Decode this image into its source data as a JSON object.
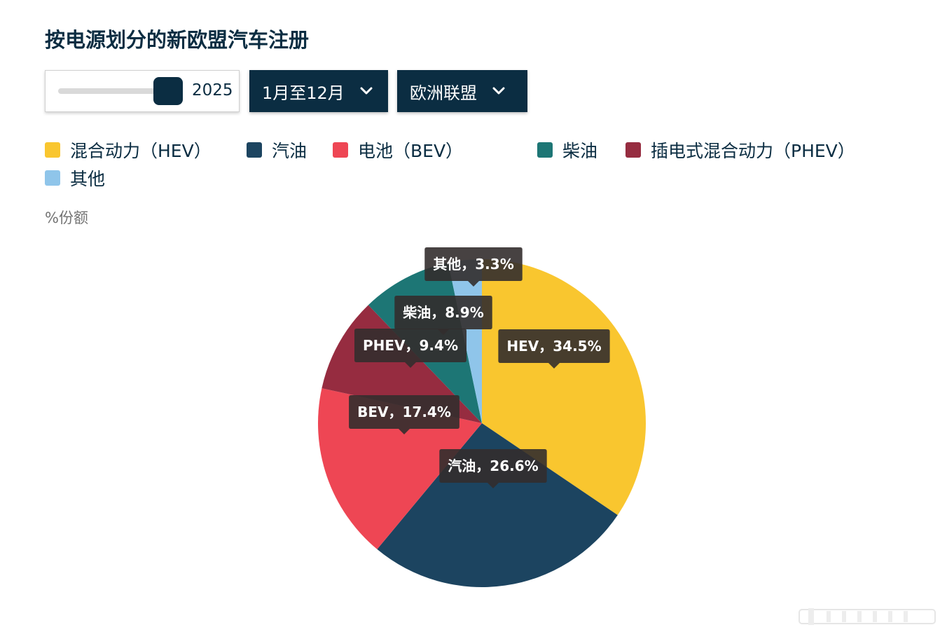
{
  "title": "按电源划分的新欧盟汽车注册",
  "controls": {
    "year_value": "2025",
    "period_label": "1月至12月",
    "region_label": "欧洲联盟"
  },
  "legend": [
    {
      "label": "混合动力（HEV）",
      "color": "#f9c62f"
    },
    {
      "label": "汽油",
      "color": "#1c4460"
    },
    {
      "label": "电池（BEV）",
      "color": "#ee4654"
    },
    {
      "label": "柴油",
      "color": "#1d7675"
    },
    {
      "label": "插电式混合动力（PHEV）",
      "color": "#962c40"
    },
    {
      "label": "其他",
      "color": "#8fc5ea"
    }
  ],
  "unit_label": "%份额",
  "chart_data": {
    "type": "pie",
    "title": "按电源划分的新欧盟汽车注册",
    "unit": "%份额",
    "slices": [
      {
        "name": "HEV",
        "value": 34.5,
        "label": "HEV，34.5%",
        "color": "#f9c62f"
      },
      {
        "name": "汽油",
        "value": 26.6,
        "label": "汽油，26.6%",
        "color": "#1c4460"
      },
      {
        "name": "BEV",
        "value": 17.4,
        "label": "BEV，17.4%",
        "color": "#ee4654"
      },
      {
        "name": "PHEV",
        "value": 9.4,
        "label": "PHEV，9.4%",
        "color": "#962c40"
      },
      {
        "name": "柴油",
        "value": 8.9,
        "label": "柴油，8.9%",
        "color": "#1d7675"
      },
      {
        "name": "其他",
        "value": 3.3,
        "label": "其他，3.3%",
        "color": "#8fc5ea"
      }
    ]
  }
}
